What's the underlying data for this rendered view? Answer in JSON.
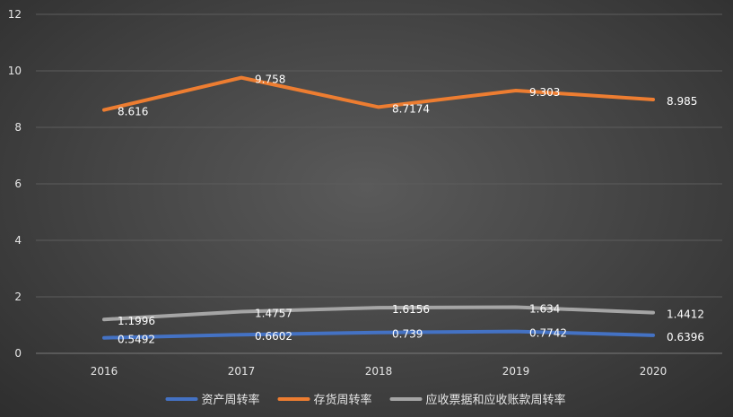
{
  "chart_data": {
    "type": "line",
    "categories": [
      "2016",
      "2017",
      "2018",
      "2019",
      "2020"
    ],
    "ylim": [
      0,
      12
    ],
    "yticks": [
      0,
      2,
      4,
      6,
      8,
      10,
      12
    ],
    "grid": true,
    "legend_position": "bottom",
    "series": [
      {
        "name": "资产周转率",
        "color": "#4472C4",
        "values": [
          0.5492,
          0.6602,
          0.739,
          0.7742,
          0.6396
        ],
        "labels": [
          "0.5492",
          "0.6602",
          "0.739",
          "0.7742",
          "0.6396"
        ]
      },
      {
        "name": "存货周转率",
        "color": "#ED7D31",
        "values": [
          8.616,
          9.758,
          8.7174,
          9.303,
          8.985
        ],
        "labels": [
          "8.616",
          "9.758",
          "8.7174",
          "9.303",
          "8.985"
        ]
      },
      {
        "name": "应收票据和应收账款周转率",
        "color": "#A5A5A5",
        "values": [
          1.1996,
          1.4757,
          1.6156,
          1.634,
          1.4412
        ],
        "labels": [
          "1.1996",
          "1.4757",
          "1.6156",
          "1.634",
          "1.4412"
        ]
      }
    ]
  }
}
